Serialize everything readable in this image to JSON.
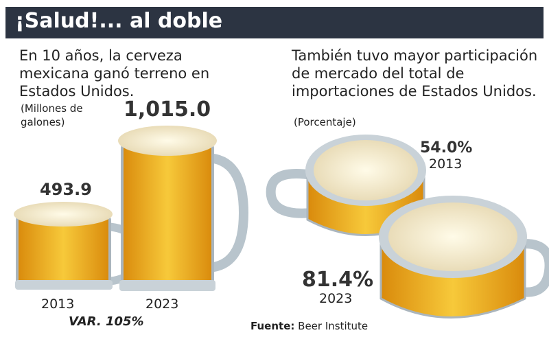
{
  "header": {
    "title": "¡Salud!... al doble"
  },
  "left": {
    "description": "En 10 años, la cerveza mexicana ganó terreno en Estados Unidos.",
    "unit": "(Millones de galones)",
    "items": [
      {
        "year": "2013",
        "value": "493.9"
      },
      {
        "year": "2023",
        "value": "1,015.0"
      }
    ],
    "change_label": "VAR. 105%"
  },
  "right": {
    "description": "También tuvo mayor participación de mercado del total de importaciones de Estados Unidos.",
    "unit": "(Porcentaje)",
    "items": [
      {
        "year": "2013",
        "value": "54.0%"
      },
      {
        "year": "2023",
        "value": "81.4%"
      }
    ]
  },
  "source": {
    "label": "Fuente:",
    "text": "Beer Institute"
  }
}
